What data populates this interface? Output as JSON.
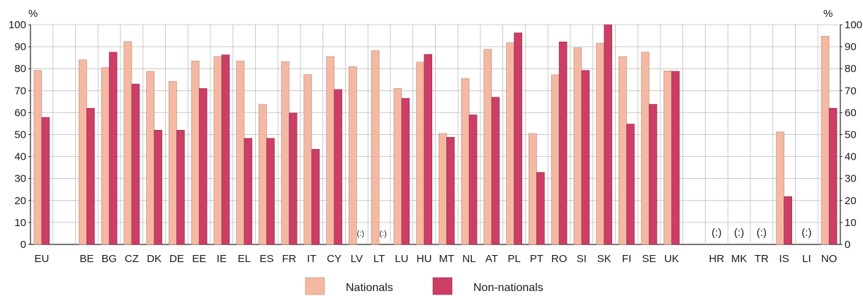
{
  "chart_data": {
    "type": "bar",
    "y_unit_label": "%",
    "ylim": [
      0,
      100
    ],
    "yticks": [
      0,
      10,
      20,
      30,
      40,
      50,
      60,
      70,
      80,
      90,
      100
    ],
    "grid": "vertical separators between categories",
    "legend_placement": "bottom-center",
    "colors": {
      "Nationals": "#f4b9a2",
      "Non-nationals": "#cc3e66"
    },
    "categories": [
      "EU",
      "",
      "BE",
      "BG",
      "CZ",
      "DK",
      "DE",
      "EE",
      "IE",
      "EL",
      "ES",
      "FR",
      "IT",
      "CY",
      "LV",
      "LT",
      "LU",
      "HU",
      "MT",
      "NL",
      "AT",
      "PL",
      "PT",
      "RO",
      "SI",
      "SK",
      "FI",
      "SE",
      "UK",
      "",
      "HR",
      "MK",
      "TR",
      "IS",
      "LI",
      "NO"
    ],
    "series": [
      {
        "name": "Nationals",
        "values": [
          79.2,
          null,
          84.0,
          80.5,
          92.3,
          78.8,
          74.2,
          83.5,
          85.5,
          83.5,
          63.8,
          83.2,
          77.3,
          85.5,
          81.0,
          88.2,
          71.0,
          83.0,
          50.5,
          75.5,
          88.8,
          91.8,
          50.5,
          77.2,
          89.5,
          91.5,
          85.5,
          87.5,
          79.0,
          null,
          null,
          null,
          null,
          51.2,
          null,
          94.8
        ]
      },
      {
        "name": "Non-nationals",
        "values": [
          57.8,
          null,
          62.0,
          87.5,
          73.0,
          52.0,
          52.0,
          71.0,
          86.3,
          48.3,
          48.3,
          59.8,
          43.3,
          70.5,
          null,
          null,
          66.5,
          86.5,
          48.8,
          59.0,
          67.0,
          96.3,
          32.8,
          92.2,
          79.2,
          100.0,
          54.8,
          63.8,
          78.8,
          null,
          null,
          null,
          null,
          21.8,
          null,
          62.0
        ]
      }
    ],
    "not_available": [
      {
        "category": "LV",
        "series": "Non-nationals",
        "label": "(:)"
      },
      {
        "category": "LT",
        "series": "Non-nationals",
        "label": "(:)"
      },
      {
        "category": "HR",
        "series": "both",
        "label": "(:)"
      },
      {
        "category": "MK",
        "series": "both",
        "label": "(:)"
      },
      {
        "category": "TR",
        "series": "both",
        "label": "(:)"
      },
      {
        "category": "LI",
        "series": "both",
        "label": "(:)"
      }
    ]
  },
  "legend": {
    "items": [
      {
        "label": "Nationals",
        "color": "#f4b9a2"
      },
      {
        "label": "Non-nationals",
        "color": "#cc3e66"
      }
    ]
  }
}
